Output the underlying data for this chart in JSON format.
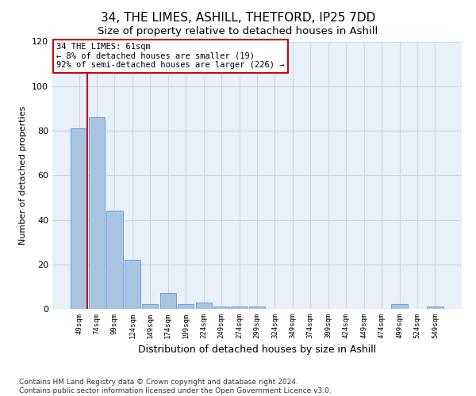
{
  "title1": "34, THE LIMES, ASHILL, THETFORD, IP25 7DD",
  "title2": "Size of property relative to detached houses in Ashill",
  "xlabel": "Distribution of detached houses by size in Ashill",
  "ylabel": "Number of detached properties",
  "categories": [
    "49sqm",
    "74sqm",
    "99sqm",
    "124sqm",
    "149sqm",
    "174sqm",
    "199sqm",
    "224sqm",
    "249sqm",
    "274sqm",
    "299sqm",
    "324sqm",
    "349sqm",
    "374sqm",
    "399sqm",
    "424sqm",
    "449sqm",
    "474sqm",
    "499sqm",
    "524sqm",
    "549sqm"
  ],
  "values": [
    81,
    86,
    44,
    22,
    2,
    7,
    2,
    3,
    1,
    1,
    1,
    0,
    0,
    0,
    0,
    0,
    0,
    0,
    2,
    0,
    1
  ],
  "bar_color": "#a8c4e0",
  "bar_edge_color": "#5b9bd5",
  "annotation_text": "34 THE LIMES: 61sqm\n← 8% of detached houses are smaller (19)\n92% of semi-detached houses are larger (226) →",
  "annotation_box_color": "#ffffff",
  "annotation_box_edge_color": "#cc0000",
  "vline_color": "#cc0000",
  "vline_x": 0.48,
  "ylim": [
    0,
    120
  ],
  "yticks": [
    0,
    20,
    40,
    60,
    80,
    100,
    120
  ],
  "grid_color": "#d0d8e8",
  "bg_color": "#eaf0f8",
  "footer": "Contains HM Land Registry data © Crown copyright and database right 2024.\nContains public sector information licensed under the Open Government Licence v3.0.",
  "title1_fontsize": 11,
  "title2_fontsize": 9.5,
  "xlabel_fontsize": 9,
  "ylabel_fontsize": 8,
  "footer_fontsize": 6.5
}
